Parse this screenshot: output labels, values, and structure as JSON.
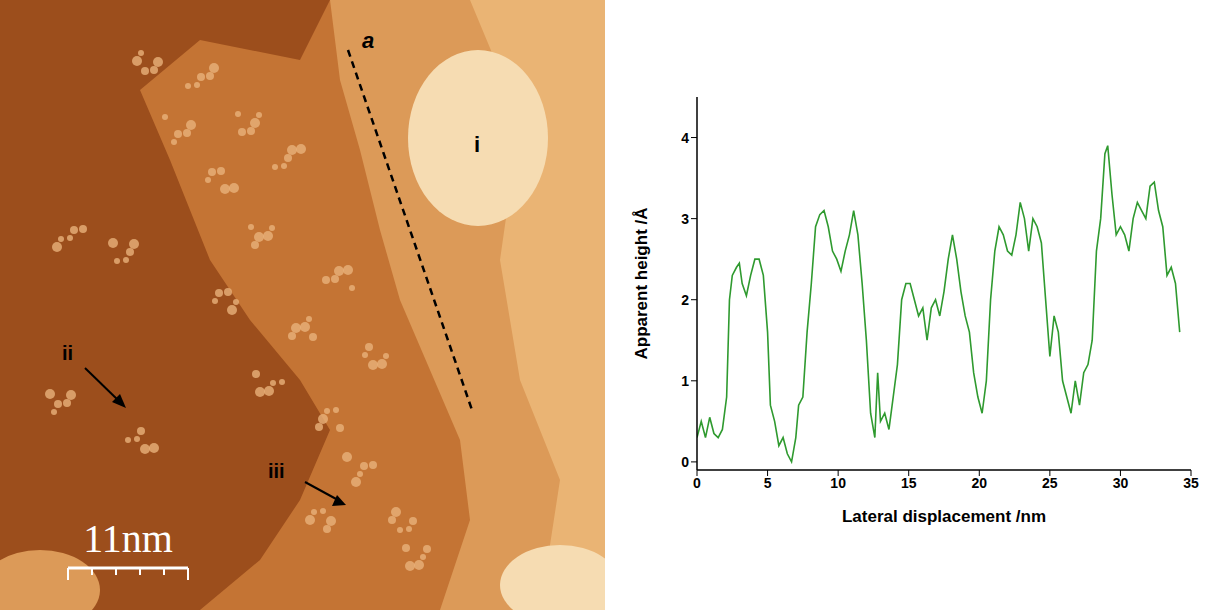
{
  "chart_data": {
    "type": "line",
    "x_label": "Lateral displacement /nm",
    "y_label": "Apparent height /Å",
    "xlim": [
      0,
      35
    ],
    "xticks": [
      0,
      5,
      10,
      15,
      20,
      25,
      30,
      35
    ],
    "ylim": [
      -0.1,
      4.5
    ],
    "yticks": [
      0,
      1,
      2,
      3,
      4
    ],
    "grid": false,
    "color": "#2f9a2f",
    "x": [
      0,
      0.3,
      0.6,
      0.9,
      1.2,
      1.5,
      1.8,
      2.1,
      2.3,
      2.5,
      2.8,
      3.0,
      3.2,
      3.5,
      3.8,
      4.1,
      4.4,
      4.7,
      5.0,
      5.2,
      5.5,
      5.8,
      6.1,
      6.4,
      6.7,
      7.0,
      7.2,
      7.5,
      7.8,
      8.1,
      8.4,
      8.7,
      9.0,
      9.3,
      9.6,
      9.9,
      10.2,
      10.5,
      10.8,
      11.1,
      11.4,
      11.7,
      12.0,
      12.3,
      12.6,
      12.8,
      13.0,
      13.3,
      13.6,
      13.9,
      14.2,
      14.5,
      14.8,
      15.1,
      15.4,
      15.7,
      16.0,
      16.3,
      16.6,
      16.9,
      17.2,
      17.5,
      17.8,
      18.1,
      18.4,
      18.7,
      19.0,
      19.3,
      19.6,
      19.9,
      20.2,
      20.5,
      20.8,
      21.1,
      21.4,
      21.7,
      22.0,
      22.3,
      22.6,
      22.9,
      23.2,
      23.5,
      23.8,
      24.1,
      24.4,
      24.7,
      25.0,
      25.3,
      25.6,
      25.9,
      26.2,
      26.5,
      26.8,
      27.1,
      27.4,
      27.7,
      28.0,
      28.3,
      28.6,
      28.9,
      29.1,
      29.4,
      29.7,
      30.0,
      30.3,
      30.6,
      30.9,
      31.2,
      31.5,
      31.8,
      32.1,
      32.4,
      32.7,
      33.0,
      33.3,
      33.6,
      33.9,
      34.2
    ],
    "values": [
      0.3,
      0.5,
      0.3,
      0.55,
      0.35,
      0.3,
      0.4,
      0.8,
      2.0,
      2.3,
      2.4,
      2.45,
      2.2,
      2.05,
      2.3,
      2.5,
      2.5,
      2.3,
      1.6,
      0.7,
      0.5,
      0.2,
      0.3,
      0.1,
      0.0,
      0.3,
      0.7,
      0.8,
      1.6,
      2.2,
      2.9,
      3.05,
      3.1,
      2.9,
      2.6,
      2.5,
      2.35,
      2.6,
      2.8,
      3.1,
      2.8,
      2.2,
      1.5,
      0.6,
      0.3,
      1.1,
      0.5,
      0.6,
      0.4,
      0.8,
      1.2,
      2.0,
      2.2,
      2.2,
      2.0,
      1.8,
      1.9,
      1.5,
      1.9,
      2.0,
      1.8,
      2.1,
      2.5,
      2.8,
      2.5,
      2.1,
      1.8,
      1.6,
      1.1,
      0.8,
      0.6,
      1.0,
      2.0,
      2.6,
      2.9,
      2.8,
      2.6,
      2.55,
      2.8,
      3.2,
      3.0,
      2.6,
      3.0,
      2.9,
      2.7,
      2.0,
      1.3,
      1.8,
      1.6,
      1.0,
      0.8,
      0.6,
      1.0,
      0.7,
      1.1,
      1.2,
      1.5,
      2.6,
      3.0,
      3.8,
      3.9,
      3.3,
      2.8,
      2.9,
      2.8,
      2.6,
      3.0,
      3.2,
      3.1,
      3.0,
      3.4,
      3.45,
      3.1,
      2.9,
      2.3,
      2.4,
      2.2,
      1.6
    ]
  },
  "image": {
    "profile_line": "a",
    "region": "i",
    "arrows": [
      "ii",
      "iii"
    ],
    "scale_bar": "11nm"
  }
}
